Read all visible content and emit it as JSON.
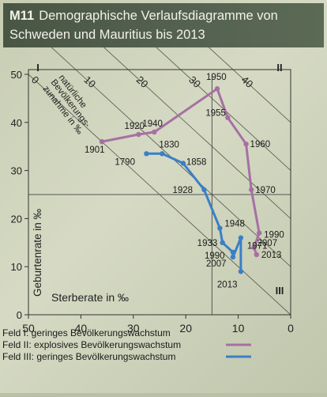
{
  "header": {
    "code": "M11",
    "title_line1": "Demographische Verlaufsdiagramme von",
    "title_line2": "Schweden und Mauritius bis 2013"
  },
  "chart_data": {
    "type": "line",
    "xlabel": "Sterberate in ‰",
    "ylabel": "Geburtenrate in ‰",
    "xlim": [
      50,
      0
    ],
    "ylim": [
      0,
      50
    ],
    "x_ticks": [
      "50",
      "40",
      "30",
      "20",
      "10",
      "0"
    ],
    "y_ticks": [
      "0",
      "10",
      "20",
      "30",
      "40",
      "50"
    ],
    "growth_lines_label": "natürliche Bevölkerungszunahme in ‰",
    "growth_lines": [
      0,
      10,
      20,
      30,
      40
    ],
    "fields": [
      "I",
      "II",
      "III"
    ],
    "series": [
      {
        "color": "#a670a3",
        "points": [
          {
            "label": "1901",
            "x": 36,
            "y": 36
          },
          {
            "label": "1920",
            "x": 29,
            "y": 37.5
          },
          {
            "label": "1940",
            "x": 26,
            "y": 38
          },
          {
            "label": "1950",
            "x": 14,
            "y": 47
          },
          {
            "label": "1955",
            "x": 12,
            "y": 41
          },
          {
            "label": "1960",
            "x": 8.5,
            "y": 35.5
          },
          {
            "label": "1970",
            "x": 7.5,
            "y": 26
          },
          {
            "label": "1990",
            "x": 6,
            "y": 17
          },
          {
            "label": "2007",
            "x": 7,
            "y": 14
          },
          {
            "label": "2013",
            "x": 6.5,
            "y": 12.5
          }
        ]
      },
      {
        "color": "#3a7fc8",
        "points": [
          {
            "label": "1790",
            "x": 27.5,
            "y": 33.5
          },
          {
            "label": "1830",
            "x": 24.5,
            "y": 33.5
          },
          {
            "label": "1858",
            "x": 20.5,
            "y": 31.5
          },
          {
            "label": "1928",
            "x": 16.5,
            "y": 26
          },
          {
            "label": "1948",
            "x": 13.5,
            "y": 18
          },
          {
            "label": "1933",
            "x": 13,
            "y": 15
          },
          {
            "label": "1990",
            "x": 11,
            "y": 13
          },
          {
            "label": "2007",
            "x": 11,
            "y": 12
          },
          {
            "label": "1971",
            "x": 9.5,
            "y": 16
          },
          {
            "label": "2013",
            "x": 9.5,
            "y": 9
          }
        ]
      }
    ],
    "legend": [
      {
        "label": "Feld I:   geringes Bevölkerungswachstum",
        "color": ""
      },
      {
        "label": "Feld II:  explosives Bevölkerungswachstum",
        "color": "#a670a3"
      },
      {
        "label": "Feld III: geringes Bevölkerungswachstum",
        "color": "#3a7fc8"
      }
    ]
  }
}
